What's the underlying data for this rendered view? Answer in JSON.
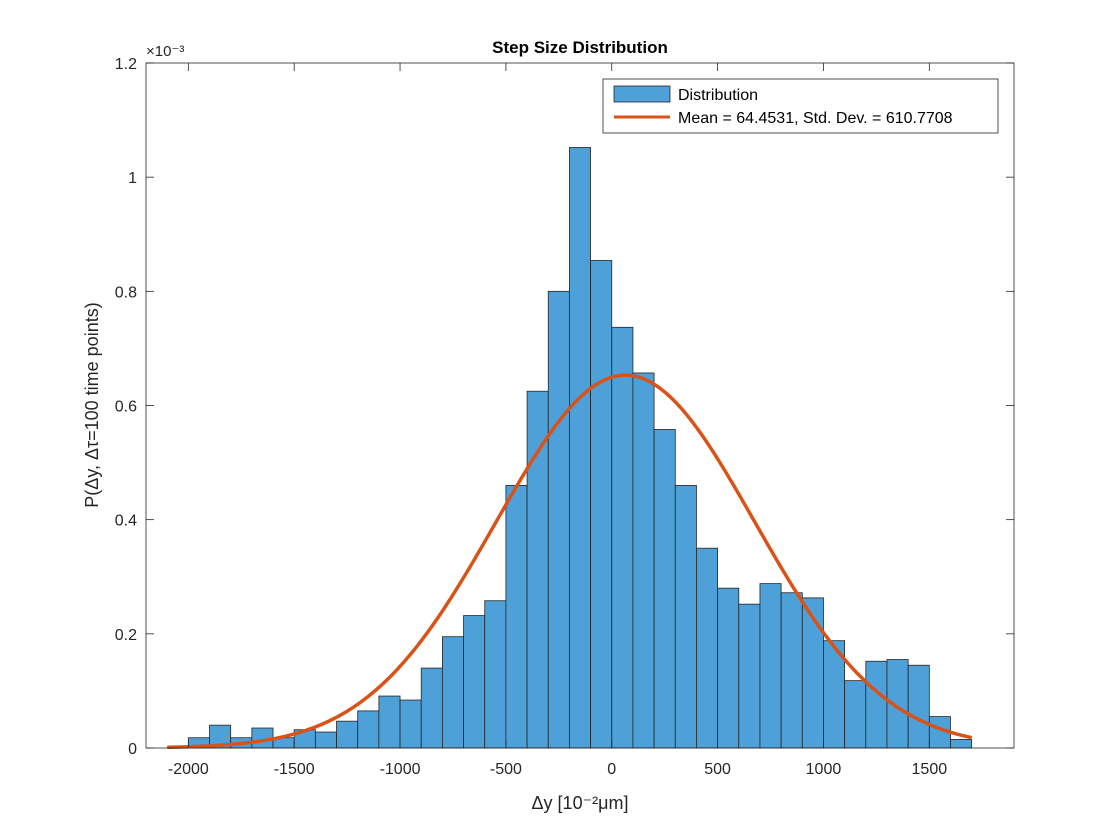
{
  "chart_data": {
    "type": "bar",
    "title": "Step Size Distribution",
    "xlabel": "Δy [10⁻²μm]",
    "ylabel": "P(Δy, Δτ=100 time points)",
    "y_exponent_label": "×10⁻³",
    "xlim": [
      -2200,
      1900
    ],
    "ylim": [
      0,
      1.2
    ],
    "xticks": [
      -2000,
      -1500,
      -1000,
      -500,
      0,
      500,
      1000,
      1500
    ],
    "xtick_labels": [
      "-2000",
      "-1500",
      "-1000",
      "-500",
      "0",
      "500",
      "1000",
      "1500"
    ],
    "yticks": [
      0,
      0.2,
      0.4,
      0.6,
      0.8,
      1.0,
      1.2
    ],
    "ytick_labels": [
      "0",
      "0.2",
      "0.4",
      "0.6",
      "0.8",
      "1",
      "1.2"
    ],
    "grid": false,
    "legend_position": "top-right",
    "bin_width": 100,
    "bin_edges_start": -2000,
    "series": [
      {
        "name": "Distribution",
        "kind": "histogram",
        "color": "#4DA0D8",
        "values": [
          0.018,
          0.04,
          0.018,
          0.035,
          0.018,
          0.032,
          0.028,
          0.047,
          0.065,
          0.091,
          0.084,
          0.14,
          0.195,
          0.232,
          0.258,
          0.46,
          0.625,
          0.8,
          1.052,
          0.854,
          0.737,
          0.657,
          0.558,
          0.46,
          0.35,
          0.28,
          0.252,
          0.288,
          0.272,
          0.263,
          0.188,
          0.118,
          0.152,
          0.155,
          0.145,
          0.055,
          0.015
        ]
      },
      {
        "name": "Mean = 64.4531, Std. Dev. = 610.7708",
        "kind": "normal_fit",
        "color": "#D95319",
        "mean": 64.4531,
        "std": 610.7708,
        "x_range": [
          -2100,
          1700
        ]
      }
    ]
  }
}
